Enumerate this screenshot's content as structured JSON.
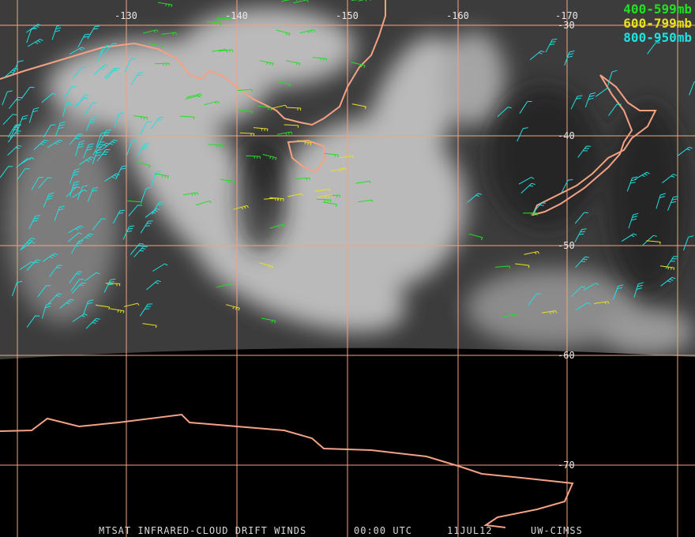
{
  "header": {
    "legend": [
      {
        "label": "400-599mb",
        "color": "#22e022"
      },
      {
        "label": "600-799mb",
        "color": "#e8e020"
      },
      {
        "label": "800-950mb",
        "color": "#20e0e0"
      }
    ]
  },
  "map": {
    "longitude_labels": [
      "-130",
      "-140",
      "-150",
      "-160",
      "-170"
    ],
    "latitude_labels": [
      "-30",
      "-40",
      "-50",
      "-60",
      "-70"
    ]
  },
  "footer": {
    "product": "MTSAT INFRARED-CLOUD DRIFT WINDS",
    "time": "00:00 UTC",
    "date": "11JUL12",
    "source": "UW-CIMSS"
  }
}
